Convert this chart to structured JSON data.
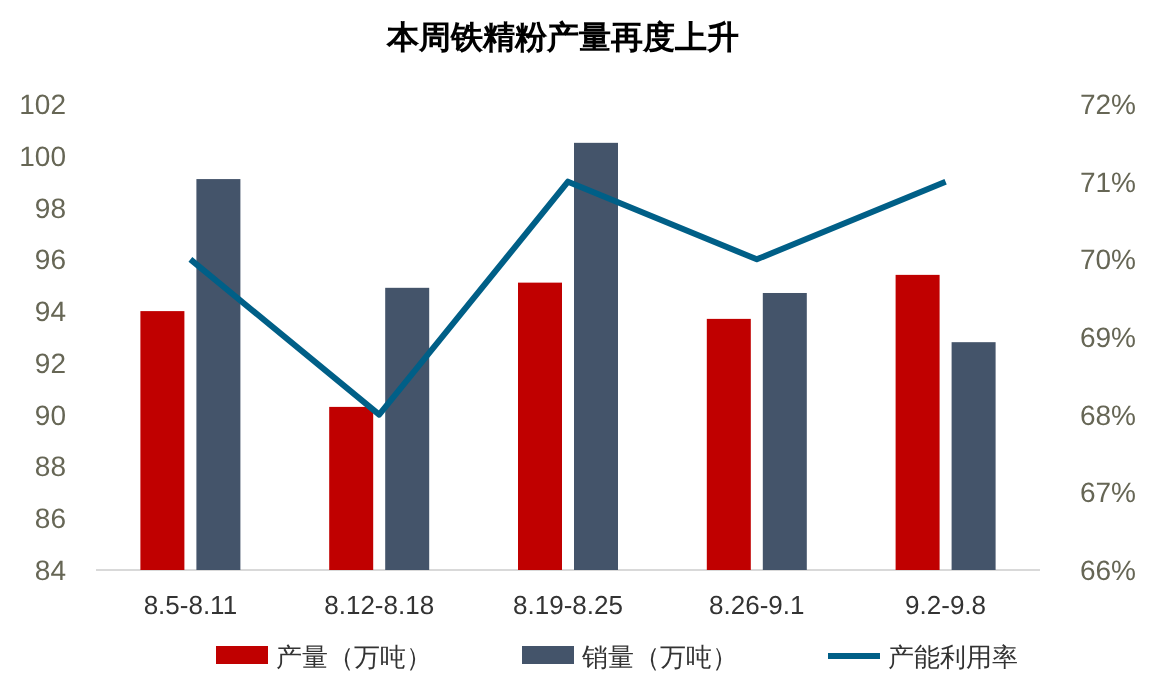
{
  "chart_data": {
    "type": "bar",
    "title": "本周铁精粉产量再度上升",
    "categories": [
      "8.5-8.11",
      "8.12-8.18",
      "8.19-8.25",
      "8.26-9.1",
      "9.2-9.8"
    ],
    "series": [
      {
        "name": "产量（万吨）",
        "color": "#c00000",
        "values": [
          94.0,
          90.3,
          95.1,
          93.7,
          95.4
        ]
      },
      {
        "name": "销量（万吨）",
        "color": "#44546a",
        "values": [
          99.1,
          94.9,
          100.5,
          94.7,
          92.8
        ]
      },
      {
        "name": "产能利用率",
        "type": "line",
        "axis": "y2",
        "color": "#005f87",
        "values": [
          70,
          68,
          71,
          70,
          71
        ]
      }
    ],
    "ylim": [
      84,
      102
    ],
    "yticks": [
      84,
      86,
      88,
      90,
      92,
      94,
      96,
      98,
      100,
      102
    ],
    "y2lim": [
      66,
      72
    ],
    "y2ticks": [
      {
        "value": 66,
        "label": "66%"
      },
      {
        "value": 67,
        "label": "67%"
      },
      {
        "value": 68,
        "label": "68%"
      },
      {
        "value": 69,
        "label": "69%"
      },
      {
        "value": 70,
        "label": "70%"
      },
      {
        "value": 71,
        "label": "71%"
      },
      {
        "value": 72,
        "label": "72%"
      }
    ],
    "legend": "bottom",
    "grid": false,
    "marker": "none"
  }
}
